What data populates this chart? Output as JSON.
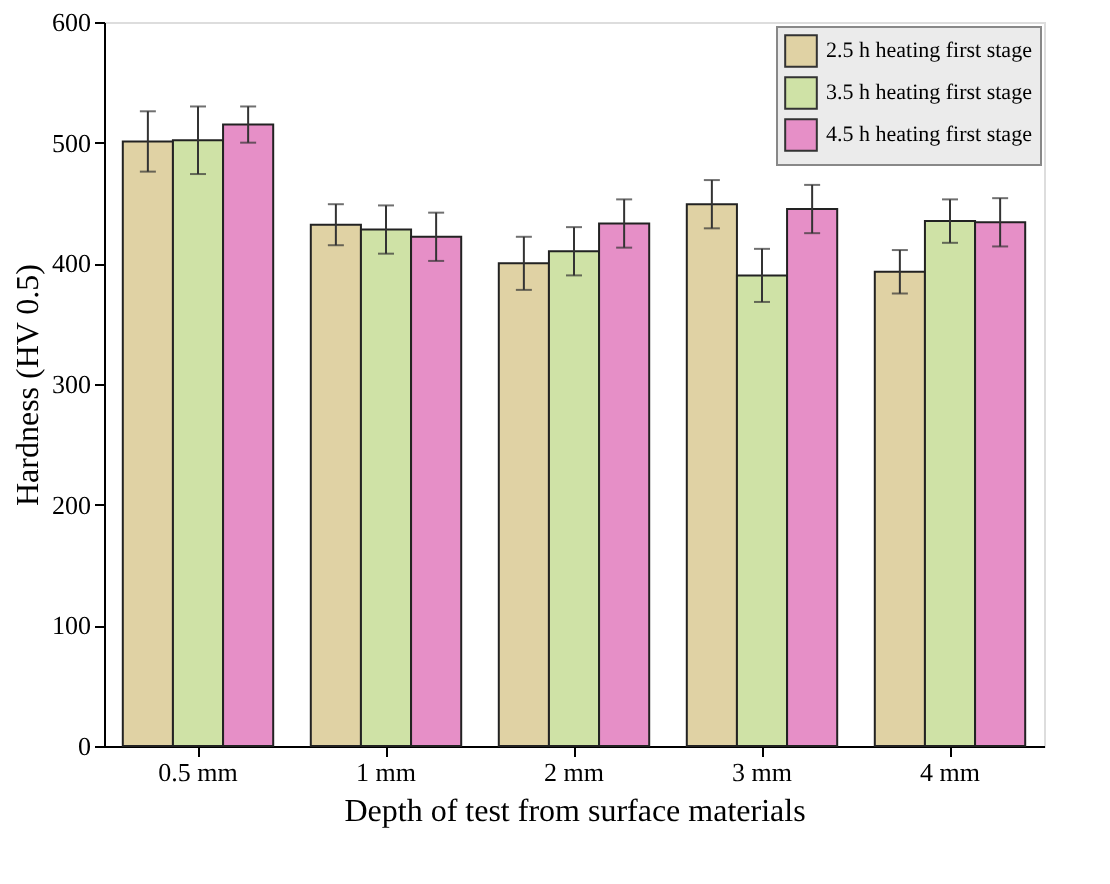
{
  "chart_data": {
    "type": "bar",
    "xlabel": "Depth of test from surface materials",
    "ylabel": "Hardness (HV 0.5)",
    "categories": [
      "0.5 mm",
      "1 mm",
      "2 mm",
      "3 mm",
      "4 mm"
    ],
    "series": [
      {
        "name": "2.5 h heating first stage",
        "color": "#e0d2a4",
        "values": [
          501,
          432,
          400,
          449,
          393
        ],
        "errors": [
          25,
          17,
          22,
          20,
          18
        ]
      },
      {
        "name": "3.5 h heating first stage",
        "color": "#cfe2a6",
        "values": [
          502,
          428,
          410,
          390,
          435
        ],
        "errors": [
          28,
          20,
          20,
          22,
          18
        ]
      },
      {
        "name": "4.5 h heating first stage",
        "color": "#e68fc7",
        "values": [
          515,
          422,
          433,
          445,
          434
        ],
        "errors": [
          15,
          20,
          20,
          20,
          20
        ]
      }
    ],
    "ylim": [
      0,
      600
    ],
    "yticks": [
      0,
      100,
      200,
      300,
      400,
      500,
      600
    ],
    "grid": false,
    "legend": "top right"
  }
}
